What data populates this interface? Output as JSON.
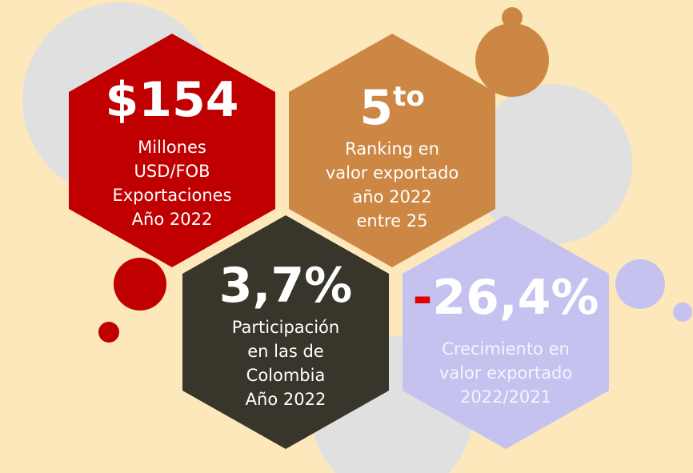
{
  "hexagons": [
    {
      "headline": "$154",
      "lines": [
        "Millones",
        "USD/FOB",
        "Exportaciones",
        "Año 2022"
      ]
    },
    {
      "headline": "5",
      "headline_sup": "to",
      "lines": [
        "Ranking en",
        "valor exportado",
        "año 2022",
        "entre 25"
      ]
    },
    {
      "headline": "3,7%",
      "lines": [
        "Participación",
        "en las de",
        "Colombia",
        "Año 2022"
      ]
    },
    {
      "headline_sign": "-",
      "headline": "26,4%",
      "lines": [
        "Crecimiento en",
        "valor exportado",
        "2022/2021"
      ]
    }
  ]
}
